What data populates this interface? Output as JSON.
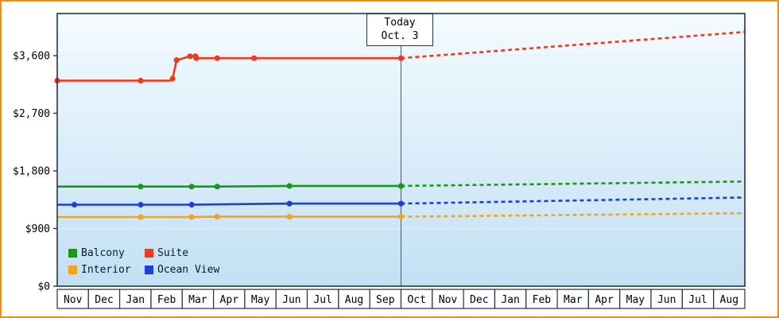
{
  "colors": {
    "frame_border": "#ff8a00",
    "plot_border": "#22344c",
    "plot_bg_top": "#f4fbff",
    "plot_bg_bottom": "#c2e0f4",
    "grid_line": "#dceefa",
    "today_line": "#46586f",
    "text": "#000000"
  },
  "today": {
    "line1": "Today",
    "line2": "Oct. 3"
  },
  "legend": {
    "items": [
      {
        "label": "Balcony",
        "color": "#169a16"
      },
      {
        "label": "Suite",
        "color": "#f0391c"
      },
      {
        "label": "Interior",
        "color": "#f2a41c"
      },
      {
        "label": "Ocean View",
        "color": "#1c3fd8"
      }
    ]
  },
  "y_axis": {
    "tick_labels": [
      "$0",
      "$900",
      "$1,800",
      "$2,700",
      "$3,600"
    ],
    "tick_values": [
      0,
      900,
      1800,
      2700,
      3600
    ]
  },
  "x_axis": {
    "months": [
      "Nov",
      "Dec",
      "Jan",
      "Feb",
      "Mar",
      "Apr",
      "May",
      "Jun",
      "Jul",
      "Aug",
      "Sep",
      "Oct",
      "Nov",
      "Dec",
      "Jan",
      "Feb",
      "Mar",
      "Apr",
      "May",
      "Jun",
      "Jul",
      "Aug"
    ]
  },
  "chart_data": {
    "type": "line",
    "title": "",
    "x_unit": "month",
    "x_categories": [
      "Nov",
      "Dec",
      "Jan",
      "Feb",
      "Mar",
      "Apr",
      "May",
      "Jun",
      "Jul",
      "Aug",
      "Sep",
      "Oct",
      "Nov",
      "Dec",
      "Jan",
      "Feb",
      "Mar",
      "Apr",
      "May",
      "Jun",
      "Jul",
      "Aug"
    ],
    "today_x": 11,
    "today_label_lines": [
      "Today",
      "Oct. 3"
    ],
    "ylim": [
      0,
      4260
    ],
    "y_ticks": [
      0,
      900,
      1800,
      2700,
      3600
    ],
    "grid": true,
    "legend_position": "bottom-left-inside",
    "note": "solid = observed price history up to today; projection = dashed forecast after today; x in month-cell units (0 = left edge of first Nov, 22 = right edge)",
    "series": [
      {
        "name": "Suite",
        "color": "#f0391c",
        "solid": {
          "x": [
            0,
            2.67,
            3.6,
            3.69,
            3.82,
            4.25,
            4.42,
            4.45,
            5.12,
            6.3,
            11
          ],
          "y": [
            3210,
            3210,
            3210,
            3240,
            3530,
            3590,
            3590,
            3560,
            3560,
            3560,
            3560
          ]
        },
        "markers": {
          "x": [
            0,
            2.67,
            3.69,
            3.82,
            4.25,
            4.42,
            4.45,
            5.12,
            6.3,
            11
          ],
          "y": [
            3210,
            3210,
            3240,
            3530,
            3590,
            3590,
            3560,
            3560,
            3560,
            3560
          ]
        },
        "projection": {
          "x": [
            11,
            22
          ],
          "y": [
            3560,
            3970
          ]
        }
      },
      {
        "name": "Balcony",
        "color": "#169a16",
        "solid": {
          "x": [
            0,
            2.67,
            4.3,
            5.12,
            7.43,
            11
          ],
          "y": [
            1555,
            1555,
            1555,
            1555,
            1565,
            1565
          ]
        },
        "markers": {
          "x": [
            2.67,
            4.3,
            5.12,
            7.43,
            11
          ],
          "y": [
            1555,
            1555,
            1555,
            1565,
            1565
          ]
        },
        "projection": {
          "x": [
            11,
            22
          ],
          "y": [
            1565,
            1635
          ]
        }
      },
      {
        "name": "Ocean View",
        "color": "#1c3fd8",
        "solid": {
          "x": [
            0,
            0.55,
            2.67,
            4.3,
            7.43,
            11
          ],
          "y": [
            1272,
            1272,
            1272,
            1272,
            1290,
            1290
          ]
        },
        "markers": {
          "x": [
            0.55,
            2.67,
            4.3,
            7.43,
            11
          ],
          "y": [
            1272,
            1272,
            1272,
            1290,
            1290
          ]
        },
        "projection": {
          "x": [
            11,
            22
          ],
          "y": [
            1290,
            1385
          ]
        }
      },
      {
        "name": "Interior",
        "color": "#f2a41c",
        "solid": {
          "x": [
            0,
            2.67,
            4.3,
            5.12,
            7.43,
            11
          ],
          "y": [
            1080,
            1080,
            1080,
            1085,
            1085,
            1085
          ]
        },
        "markers": {
          "x": [
            2.67,
            4.3,
            5.12,
            7.43,
            11
          ],
          "y": [
            1080,
            1080,
            1085,
            1085,
            1085
          ]
        },
        "projection": {
          "x": [
            11,
            22
          ],
          "y": [
            1085,
            1140
          ]
        }
      }
    ]
  }
}
